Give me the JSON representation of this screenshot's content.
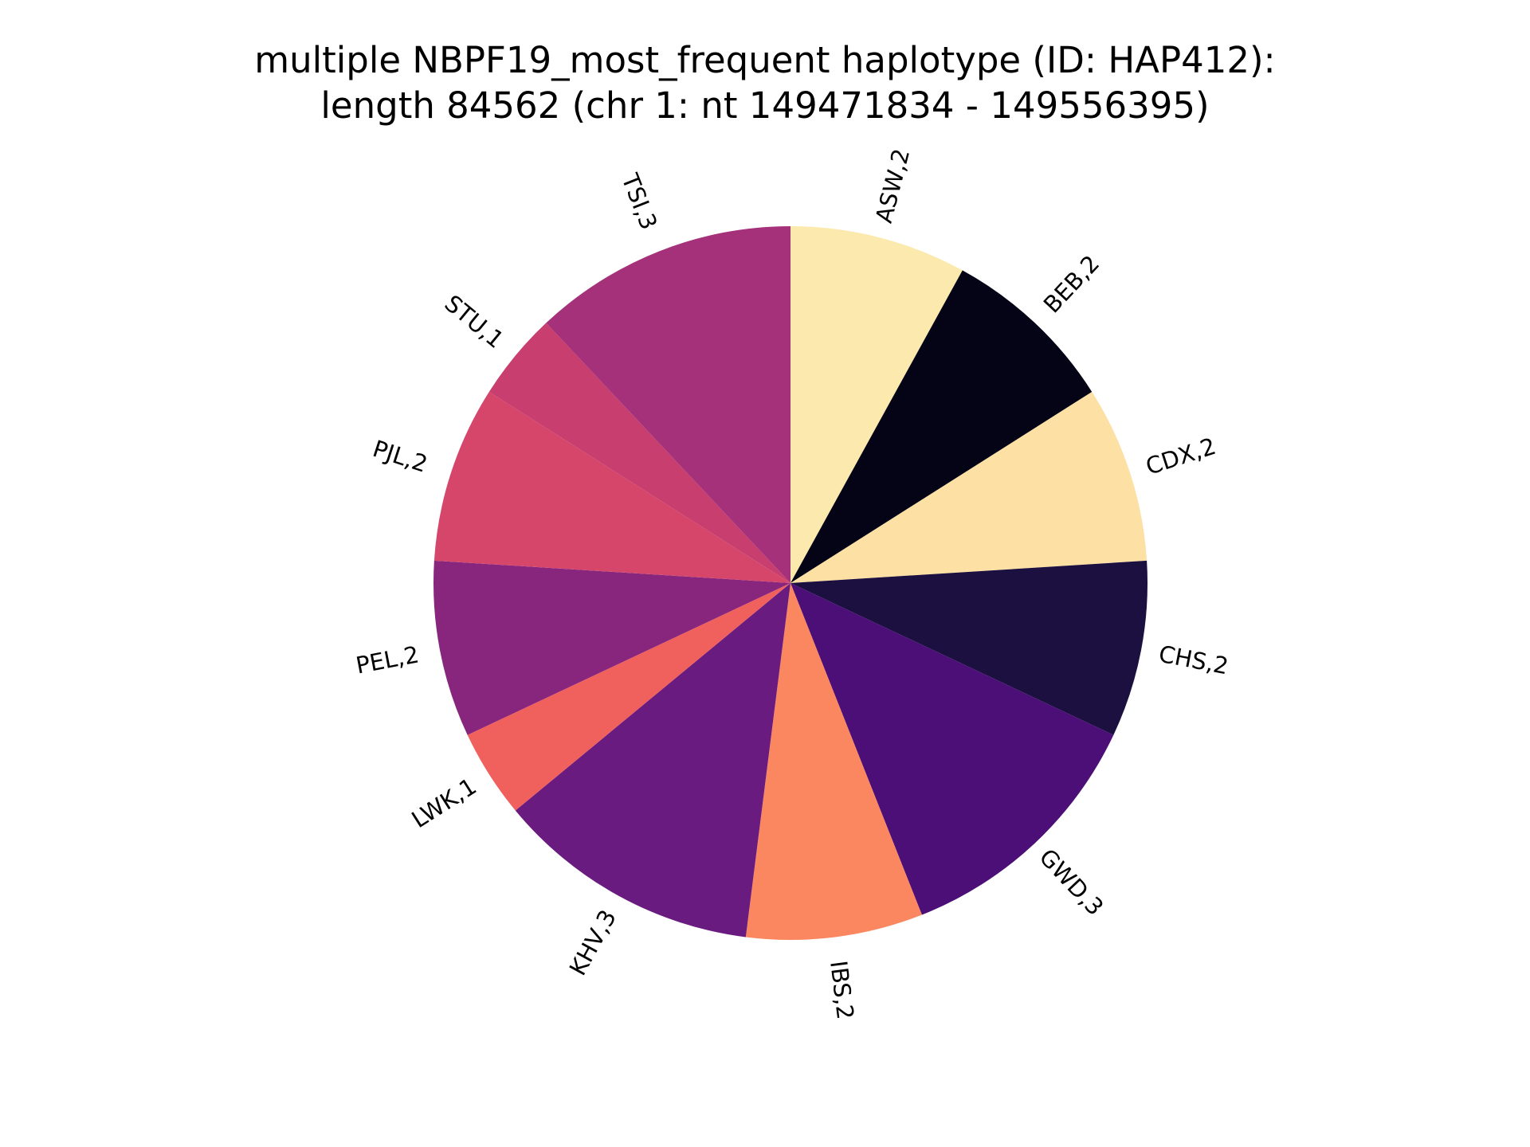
{
  "chart_data": {
    "type": "pie",
    "title_lines": [
      "multiple NBPF19_most_frequent haplotype (ID: HAP412):",
      "length 84562 (chr 1: nt 149471834 - 149556395)"
    ],
    "start_angle_deg": 90,
    "direction": "clockwise",
    "slices": [
      {
        "label": "ASW,2",
        "value": 2,
        "color": "#fce9ad"
      },
      {
        "label": "BEB,2",
        "value": 2,
        "color": "#050417"
      },
      {
        "label": "CDX,2",
        "value": 2,
        "color": "#fce0a4"
      },
      {
        "label": "CHS,2",
        "value": 2,
        "color": "#1c1040"
      },
      {
        "label": "GWD,3",
        "value": 3,
        "color": "#4b0f77"
      },
      {
        "label": "IBS,2",
        "value": 2,
        "color": "#fa8760"
      },
      {
        "label": "KHV,3",
        "value": 3,
        "color": "#6a1b80"
      },
      {
        "label": "LWK,1",
        "value": 1,
        "color": "#f0605d"
      },
      {
        "label": "PEL,2",
        "value": 2,
        "color": "#88267e"
      },
      {
        "label": "PJL,2",
        "value": 2,
        "color": "#d6466b"
      },
      {
        "label": "STU,1",
        "value": 1,
        "color": "#c73e6f"
      },
      {
        "label": "TSI,3",
        "value": 3,
        "color": "#a5317a"
      }
    ]
  }
}
